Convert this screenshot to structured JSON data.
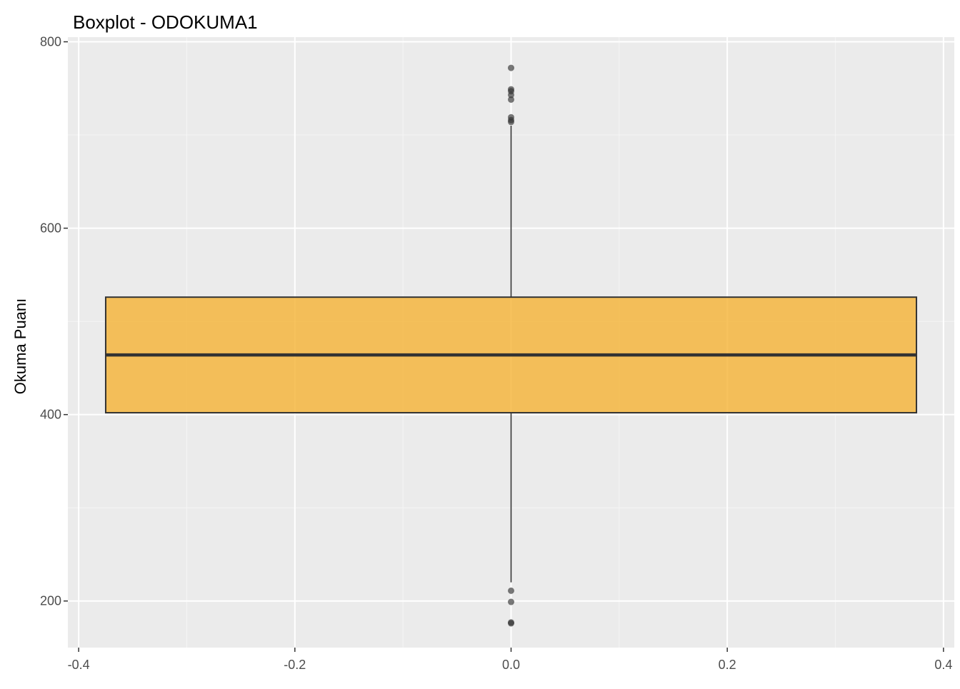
{
  "chart_data": {
    "type": "boxplot",
    "title": "Boxplot - ODOKUMA1",
    "xlabel": "",
    "ylabel": "Okuma Puanı",
    "xlim": [
      -0.41,
      0.41
    ],
    "ylim": [
      150,
      805
    ],
    "x_ticks": [
      -0.4,
      -0.2,
      0.0,
      0.2,
      0.4
    ],
    "x_tick_labels": [
      "-0.4",
      "-0.2",
      "0.0",
      "0.2",
      "0.4"
    ],
    "y_ticks": [
      200,
      400,
      600,
      800
    ],
    "y_tick_labels": [
      "200",
      "400",
      "600",
      "800"
    ],
    "grid": true,
    "legend": "none",
    "box": {
      "x_center": 0.0,
      "x_min": -0.375,
      "x_max": 0.375,
      "q1": 402,
      "median": 464,
      "q3": 526,
      "whisker_low": 220,
      "whisker_high": 710,
      "fill": "#F5B335",
      "fill_opacity": 0.8,
      "stroke": "#333333"
    },
    "outliers": [
      {
        "x": 0.0,
        "y": 772
      },
      {
        "x": 0.0,
        "y": 749
      },
      {
        "x": 0.0,
        "y": 747
      },
      {
        "x": 0.0,
        "y": 743
      },
      {
        "x": 0.0,
        "y": 738
      },
      {
        "x": 0.0,
        "y": 719
      },
      {
        "x": 0.0,
        "y": 716
      },
      {
        "x": 0.0,
        "y": 714
      },
      {
        "x": 0.0,
        "y": 211
      },
      {
        "x": 0.0,
        "y": 199
      },
      {
        "x": 0.0,
        "y": 177
      },
      {
        "x": 0.0,
        "y": 176
      }
    ],
    "colors": {
      "panel_background": "#EBEBEB",
      "grid_major": "#FFFFFF",
      "grid_minor": "#F5F5F5",
      "outlier": "#333333"
    }
  }
}
